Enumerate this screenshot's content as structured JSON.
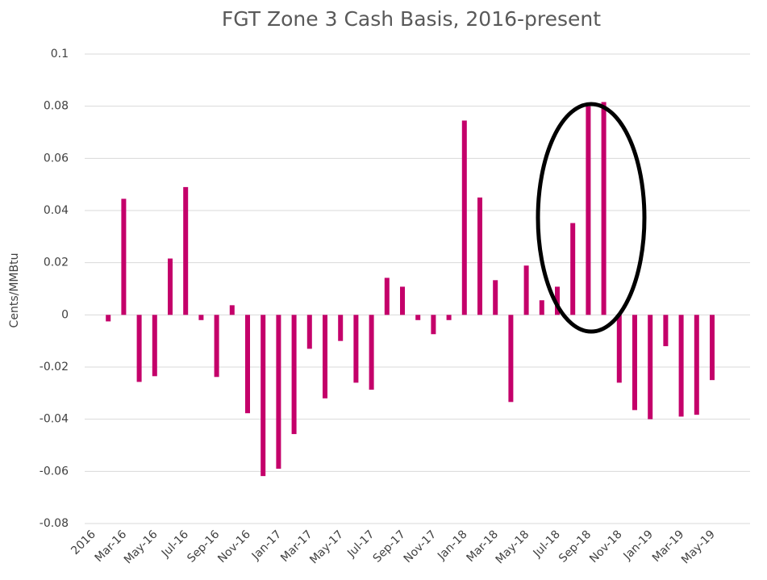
{
  "chart_data": {
    "type": "bar",
    "title": "FGT Zone 3 Cash Basis, 2016-present",
    "y_label": "Cents/MMBtu",
    "categories": [
      "2016",
      null,
      "Mar-16",
      null,
      "May-16",
      null,
      "Jul-16",
      null,
      "Sep-16",
      null,
      "Nov-16",
      null,
      "Jan-17",
      null,
      "Mar-17",
      null,
      "May-17",
      null,
      "Jul-17",
      null,
      "Sep-17",
      null,
      "Nov-17",
      null,
      "Jan-18",
      null,
      "Mar-18",
      null,
      "May-18",
      null,
      "Jul-18",
      null,
      "Sep-18",
      null,
      "Nov-18",
      null,
      "Jan-19",
      null,
      "Mar-19",
      null,
      "May-19"
    ],
    "values": [
      null,
      -0.0025,
      0.0445,
      -0.0257,
      -0.0235,
      0.0216,
      0.049,
      -0.002,
      -0.0238,
      0.0037,
      -0.0377,
      -0.0618,
      -0.059,
      -0.0457,
      -0.013,
      -0.032,
      -0.01,
      -0.026,
      -0.0287,
      0.0142,
      0.0108,
      -0.002,
      -0.0074,
      -0.002,
      0.0745,
      0.045,
      0.0133,
      -0.0334,
      0.0189,
      0.0056,
      0.0108,
      0.0352,
      0.08,
      0.0816,
      -0.026,
      -0.0365,
      -0.04,
      -0.012,
      -0.039,
      -0.0383,
      -0.025
    ],
    "color": "#c4006a",
    "ylim": [
      -0.08,
      0.1
    ],
    "yticks": [
      -0.08,
      -0.06,
      -0.04,
      -0.02,
      0,
      0.02,
      0.04,
      0.06,
      0.08,
      0.1
    ],
    "grid": true
  }
}
